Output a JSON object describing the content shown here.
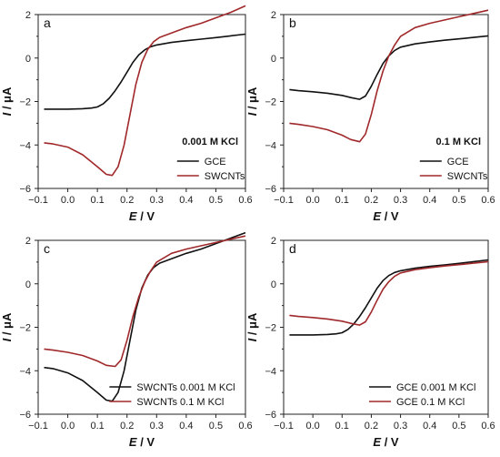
{
  "colors": {
    "black": "#111111",
    "red": "#a0282a"
  },
  "chart_data": [
    {
      "panel": "a",
      "type": "line",
      "xlabel_italic": "E",
      "xlabel_unit": " / V",
      "ylabel_italic": "I",
      "ylabel_unit": " / μA",
      "xlim": [
        -0.1,
        0.6
      ],
      "ylim": [
        -6,
        2
      ],
      "xticks": [
        "−0.1",
        "0.0",
        "0.1",
        "0.2",
        "0.3",
        "0.4",
        "0.5",
        "0.6"
      ],
      "yticks": [
        "−6",
        "−4",
        "−2",
        "0",
        "2"
      ],
      "annotation": "0.001 M KCl",
      "legend_position": "bottom-right",
      "series": [
        {
          "name": "GCE",
          "color": "#111111",
          "x": [
            -0.08,
            -0.05,
            0.0,
            0.05,
            0.08,
            0.1,
            0.12,
            0.14,
            0.16,
            0.18,
            0.2,
            0.22,
            0.24,
            0.26,
            0.28,
            0.3,
            0.35,
            0.4,
            0.45,
            0.5,
            0.55,
            0.6
          ],
          "y": [
            -2.35,
            -2.35,
            -2.35,
            -2.33,
            -2.3,
            -2.25,
            -2.1,
            -1.85,
            -1.5,
            -1.1,
            -0.65,
            -0.2,
            0.15,
            0.38,
            0.52,
            0.6,
            0.72,
            0.8,
            0.87,
            0.94,
            1.02,
            1.1
          ]
        },
        {
          "name": "SWCNTs",
          "color": "#a0282a",
          "x": [
            -0.08,
            -0.05,
            0.0,
            0.05,
            0.1,
            0.13,
            0.15,
            0.17,
            0.19,
            0.21,
            0.23,
            0.25,
            0.27,
            0.29,
            0.31,
            0.35,
            0.4,
            0.45,
            0.5,
            0.55,
            0.6
          ],
          "y": [
            -3.9,
            -3.95,
            -4.1,
            -4.45,
            -5.0,
            -5.35,
            -5.4,
            -5.0,
            -4.0,
            -2.6,
            -1.2,
            -0.2,
            0.4,
            0.75,
            0.95,
            1.15,
            1.4,
            1.6,
            1.85,
            2.1,
            2.4
          ]
        }
      ]
    },
    {
      "panel": "b",
      "type": "line",
      "xlabel_italic": "E",
      "xlabel_unit": " / V",
      "ylabel_italic": "I",
      "ylabel_unit": " / μA",
      "xlim": [
        -0.1,
        0.6
      ],
      "ylim": [
        -6,
        2
      ],
      "xticks": [
        "−0.1",
        "0.0",
        "0.1",
        "0.2",
        "0.3",
        "0.4",
        "0.5",
        "0.6"
      ],
      "yticks": [
        "−6",
        "−4",
        "−2",
        "0",
        "2"
      ],
      "annotation": "0.1 M KCl",
      "legend_position": "bottom-right",
      "series": [
        {
          "name": "GCE",
          "color": "#111111",
          "x": [
            -0.08,
            -0.05,
            0.0,
            0.05,
            0.1,
            0.13,
            0.16,
            0.18,
            0.2,
            0.22,
            0.24,
            0.26,
            0.28,
            0.3,
            0.35,
            0.4,
            0.45,
            0.5,
            0.55,
            0.6
          ],
          "y": [
            -1.45,
            -1.5,
            -1.55,
            -1.62,
            -1.72,
            -1.82,
            -1.9,
            -1.75,
            -1.3,
            -0.75,
            -0.25,
            0.1,
            0.35,
            0.5,
            0.65,
            0.74,
            0.82,
            0.88,
            0.95,
            1.02
          ]
        },
        {
          "name": "SWCNTs",
          "color": "#a0282a",
          "x": [
            -0.08,
            -0.05,
            0.0,
            0.05,
            0.1,
            0.13,
            0.16,
            0.18,
            0.2,
            0.22,
            0.24,
            0.26,
            0.28,
            0.3,
            0.35,
            0.4,
            0.45,
            0.5,
            0.55,
            0.6
          ],
          "y": [
            -3.0,
            -3.05,
            -3.15,
            -3.3,
            -3.55,
            -3.75,
            -3.85,
            -3.5,
            -2.6,
            -1.5,
            -0.6,
            0.1,
            0.6,
            1.0,
            1.4,
            1.6,
            1.75,
            1.9,
            2.05,
            2.2
          ]
        }
      ]
    },
    {
      "panel": "c",
      "type": "line",
      "xlabel_italic": "E",
      "xlabel_unit": " / V",
      "ylabel_italic": "I",
      "ylabel_unit": " / μA",
      "xlim": [
        -0.1,
        0.6
      ],
      "ylim": [
        -6,
        2
      ],
      "xticks": [
        "−0.1",
        "0.0",
        "0.1",
        "0.2",
        "0.3",
        "0.4",
        "0.5",
        "0.6"
      ],
      "yticks": [
        "−6",
        "−4",
        "−2",
        "0",
        "2"
      ],
      "annotation": "",
      "legend_position": "bottom-right",
      "series": [
        {
          "name": "SWCNTs 0.001 M KCl",
          "color": "#111111",
          "x": [
            -0.08,
            -0.05,
            0.0,
            0.05,
            0.1,
            0.13,
            0.15,
            0.17,
            0.19,
            0.21,
            0.23,
            0.25,
            0.27,
            0.29,
            0.31,
            0.35,
            0.4,
            0.45,
            0.5,
            0.55,
            0.6
          ],
          "y": [
            -3.85,
            -3.9,
            -4.1,
            -4.45,
            -5.0,
            -5.35,
            -5.4,
            -5.0,
            -4.0,
            -2.6,
            -1.2,
            -0.2,
            0.4,
            0.75,
            0.95,
            1.15,
            1.4,
            1.6,
            1.85,
            2.1,
            2.35
          ]
        },
        {
          "name": "SWCNTs 0.1 M KCl",
          "color": "#a0282a",
          "x": [
            -0.08,
            -0.05,
            0.0,
            0.05,
            0.1,
            0.13,
            0.16,
            0.18,
            0.2,
            0.22,
            0.24,
            0.26,
            0.28,
            0.3,
            0.35,
            0.4,
            0.45,
            0.5,
            0.55,
            0.6
          ],
          "y": [
            -3.0,
            -3.05,
            -3.15,
            -3.3,
            -3.55,
            -3.75,
            -3.8,
            -3.5,
            -2.6,
            -1.5,
            -0.6,
            0.1,
            0.6,
            1.0,
            1.4,
            1.6,
            1.75,
            1.9,
            2.05,
            2.2
          ]
        }
      ]
    },
    {
      "panel": "d",
      "type": "line",
      "xlabel_italic": "E",
      "xlabel_unit": " / V",
      "ylabel_italic": "I",
      "ylabel_unit": " / μA",
      "xlim": [
        -0.1,
        0.6
      ],
      "ylim": [
        -6,
        2
      ],
      "xticks": [
        "−0.1",
        "0.0",
        "0.1",
        "0.2",
        "0.3",
        "0.4",
        "0.5",
        "0.6"
      ],
      "yticks": [
        "−6",
        "−4",
        "−2",
        "0",
        "2"
      ],
      "annotation": "",
      "legend_position": "bottom-right",
      "series": [
        {
          "name": "GCE 0.001 M KCl",
          "color": "#111111",
          "x": [
            -0.08,
            -0.05,
            0.0,
            0.05,
            0.08,
            0.1,
            0.12,
            0.14,
            0.16,
            0.18,
            0.2,
            0.22,
            0.24,
            0.26,
            0.28,
            0.3,
            0.35,
            0.4,
            0.45,
            0.5,
            0.55,
            0.6
          ],
          "y": [
            -2.35,
            -2.35,
            -2.35,
            -2.33,
            -2.3,
            -2.25,
            -2.1,
            -1.85,
            -1.5,
            -1.1,
            -0.65,
            -0.2,
            0.15,
            0.38,
            0.52,
            0.6,
            0.72,
            0.8,
            0.87,
            0.94,
            1.02,
            1.1
          ]
        },
        {
          "name": "GCE 0.1 M KCl",
          "color": "#a0282a",
          "x": [
            -0.08,
            -0.05,
            0.0,
            0.05,
            0.1,
            0.13,
            0.16,
            0.18,
            0.2,
            0.22,
            0.24,
            0.26,
            0.28,
            0.3,
            0.35,
            0.4,
            0.45,
            0.5,
            0.55,
            0.6
          ],
          "y": [
            -1.45,
            -1.5,
            -1.55,
            -1.62,
            -1.72,
            -1.82,
            -1.9,
            -1.75,
            -1.3,
            -0.75,
            -0.25,
            0.1,
            0.35,
            0.5,
            0.65,
            0.74,
            0.82,
            0.88,
            0.95,
            1.02
          ]
        }
      ]
    }
  ]
}
